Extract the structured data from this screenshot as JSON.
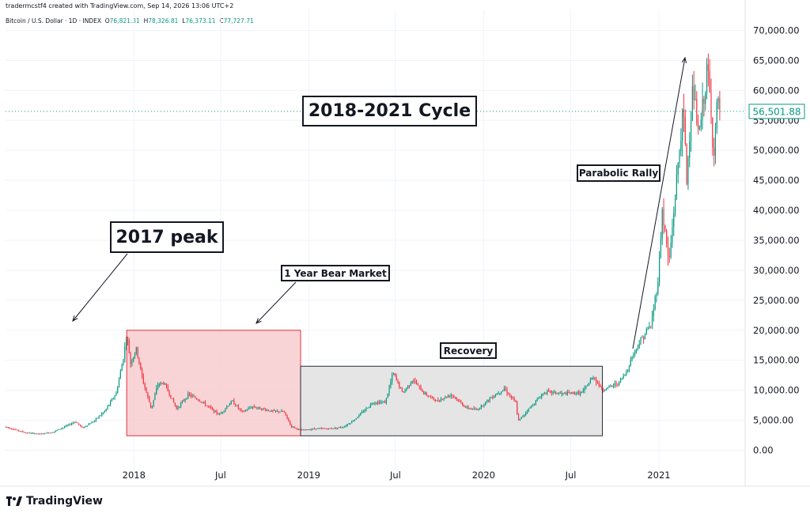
{
  "header": {
    "title": "tradermcstf4 created with TradingView.com, Sep 14, 2026 13:06 UTC+2"
  },
  "legend": {
    "symbol": "Bitcoin / U.S. Dollar · 1D · INDEX",
    "open_label": "O",
    "open": "76,821.31",
    "high_label": "H",
    "high": "78,326.81",
    "low_label": "L",
    "low": "76,373.11",
    "close_label": "C",
    "close": "77,727.71"
  },
  "annotations": {
    "cycle_title": "2018-2021 Cycle",
    "peak_2017": "2017 peak",
    "bear_market": "1 Year Bear Market",
    "recovery": "Recovery",
    "parabolic": "Parabolic Rally"
  },
  "price_tag": "56,501.88",
  "footer": {
    "logo_text": "TradingView"
  },
  "colors": {
    "up": "#089981",
    "down": "#f23645",
    "bear_zone": "#f7c5c8",
    "recovery_zone": "#e0e0e0",
    "grid": "#f0f3fa"
  },
  "chart_data": {
    "type": "candlestick",
    "title": "2018-2021 Cycle",
    "series_name": "Bitcoin / U.S. Dollar",
    "y_ticks": [
      "0.00",
      "5,000.00",
      "10,000.00",
      "15,000.00",
      "20,000.00",
      "25,000.00",
      "30,000.00",
      "35,000.00",
      "40,000.00",
      "45,000.00",
      "50,000.00",
      "55,000.00",
      "60,000.00",
      "65,000.00",
      "70,000.00"
    ],
    "y_tick_values": [
      0,
      5000,
      10000,
      15000,
      20000,
      25000,
      30000,
      35000,
      40000,
      45000,
      50000,
      55000,
      60000,
      65000,
      70000
    ],
    "ylim": [
      -3500,
      73500
    ],
    "x_ticks": [
      {
        "date": "2018-01-01",
        "label": "2018"
      },
      {
        "date": "2018-07-01",
        "label": "Jul"
      },
      {
        "date": "2019-01-01",
        "label": "2019"
      },
      {
        "date": "2019-07-01",
        "label": "Jul"
      },
      {
        "date": "2020-01-01",
        "label": "2020"
      },
      {
        "date": "2020-07-01",
        "label": "Jul"
      },
      {
        "date": "2021-01-01",
        "label": "2021"
      }
    ],
    "xlim": [
      "2017-04-08",
      "2021-06-30"
    ],
    "last_price": 56501.88,
    "price_path": [
      [
        "2017-04-08",
        3900
      ],
      [
        "2017-05-20",
        2900
      ],
      [
        "2017-06-20",
        2700
      ],
      [
        "2017-07-15",
        3000
      ],
      [
        "2017-08-15",
        4100
      ],
      [
        "2017-09-01",
        4800
      ],
      [
        "2017-09-15",
        3700
      ],
      [
        "2017-10-10",
        4900
      ],
      [
        "2017-11-01",
        6500
      ],
      [
        "2017-11-25",
        9500
      ],
      [
        "2017-12-10",
        15500
      ],
      [
        "2017-12-17",
        19300
      ],
      [
        "2017-12-25",
        14500
      ],
      [
        "2018-01-06",
        16800
      ],
      [
        "2018-01-20",
        11500
      ],
      [
        "2018-02-06",
        6900
      ],
      [
        "2018-02-20",
        11000
      ],
      [
        "2018-03-05",
        11200
      ],
      [
        "2018-03-31",
        6900
      ],
      [
        "2018-04-25",
        9300
      ],
      [
        "2018-05-20",
        8200
      ],
      [
        "2018-06-28",
        5900
      ],
      [
        "2018-07-25",
        8200
      ],
      [
        "2018-08-15",
        6300
      ],
      [
        "2018-09-05",
        7300
      ],
      [
        "2018-10-15",
        6500
      ],
      [
        "2018-11-10",
        6400
      ],
      [
        "2018-11-25",
        4000
      ],
      [
        "2018-12-15",
        3300
      ],
      [
        "2019-01-15",
        3600
      ],
      [
        "2019-02-15",
        3600
      ],
      [
        "2019-03-15",
        3900
      ],
      [
        "2019-04-05",
        5000
      ],
      [
        "2019-05-15",
        8000
      ],
      [
        "2019-06-10",
        8000
      ],
      [
        "2019-06-26",
        12900
      ],
      [
        "2019-07-16",
        9500
      ],
      [
        "2019-08-06",
        11800
      ],
      [
        "2019-08-28",
        9600
      ],
      [
        "2019-09-25",
        8200
      ],
      [
        "2019-10-26",
        9300
      ],
      [
        "2019-11-25",
        7100
      ],
      [
        "2019-12-18",
        6700
      ],
      [
        "2020-01-15",
        8700
      ],
      [
        "2020-02-13",
        10300
      ],
      [
        "2020-03-08",
        7900
      ],
      [
        "2020-03-13",
        4800
      ],
      [
        "2020-04-01",
        6600
      ],
      [
        "2020-05-08",
        9800
      ],
      [
        "2020-06-15",
        9400
      ],
      [
        "2020-07-25",
        9600
      ],
      [
        "2020-08-17",
        12300
      ],
      [
        "2020-09-05",
        10000
      ],
      [
        "2020-10-10",
        11300
      ],
      [
        "2020-10-25",
        13000
      ],
      [
        "2020-11-05",
        15500
      ],
      [
        "2020-11-25",
        18500
      ],
      [
        "2020-12-16",
        21000
      ],
      [
        "2020-12-31",
        29000
      ],
      [
        "2021-01-08",
        40000
      ],
      [
        "2021-01-22",
        31000
      ],
      [
        "2021-02-08",
        46000
      ],
      [
        "2021-02-21",
        57000
      ],
      [
        "2021-02-28",
        45000
      ],
      [
        "2021-03-13",
        61000
      ],
      [
        "2021-03-25",
        52000
      ],
      [
        "2021-04-13",
        64000
      ],
      [
        "2021-04-25",
        49000
      ],
      [
        "2021-05-03",
        58000
      ],
      [
        "2021-05-10",
        56500
      ]
    ],
    "shaded_zones": [
      {
        "label": "1 Year Bear Market",
        "from": "2017-12-17",
        "to": "2018-12-15",
        "low": 2400,
        "high": 20000
      },
      {
        "label": "Recovery",
        "from": "2018-12-15",
        "to": "2020-09-05",
        "low": 2400,
        "high": 14000
      }
    ]
  }
}
